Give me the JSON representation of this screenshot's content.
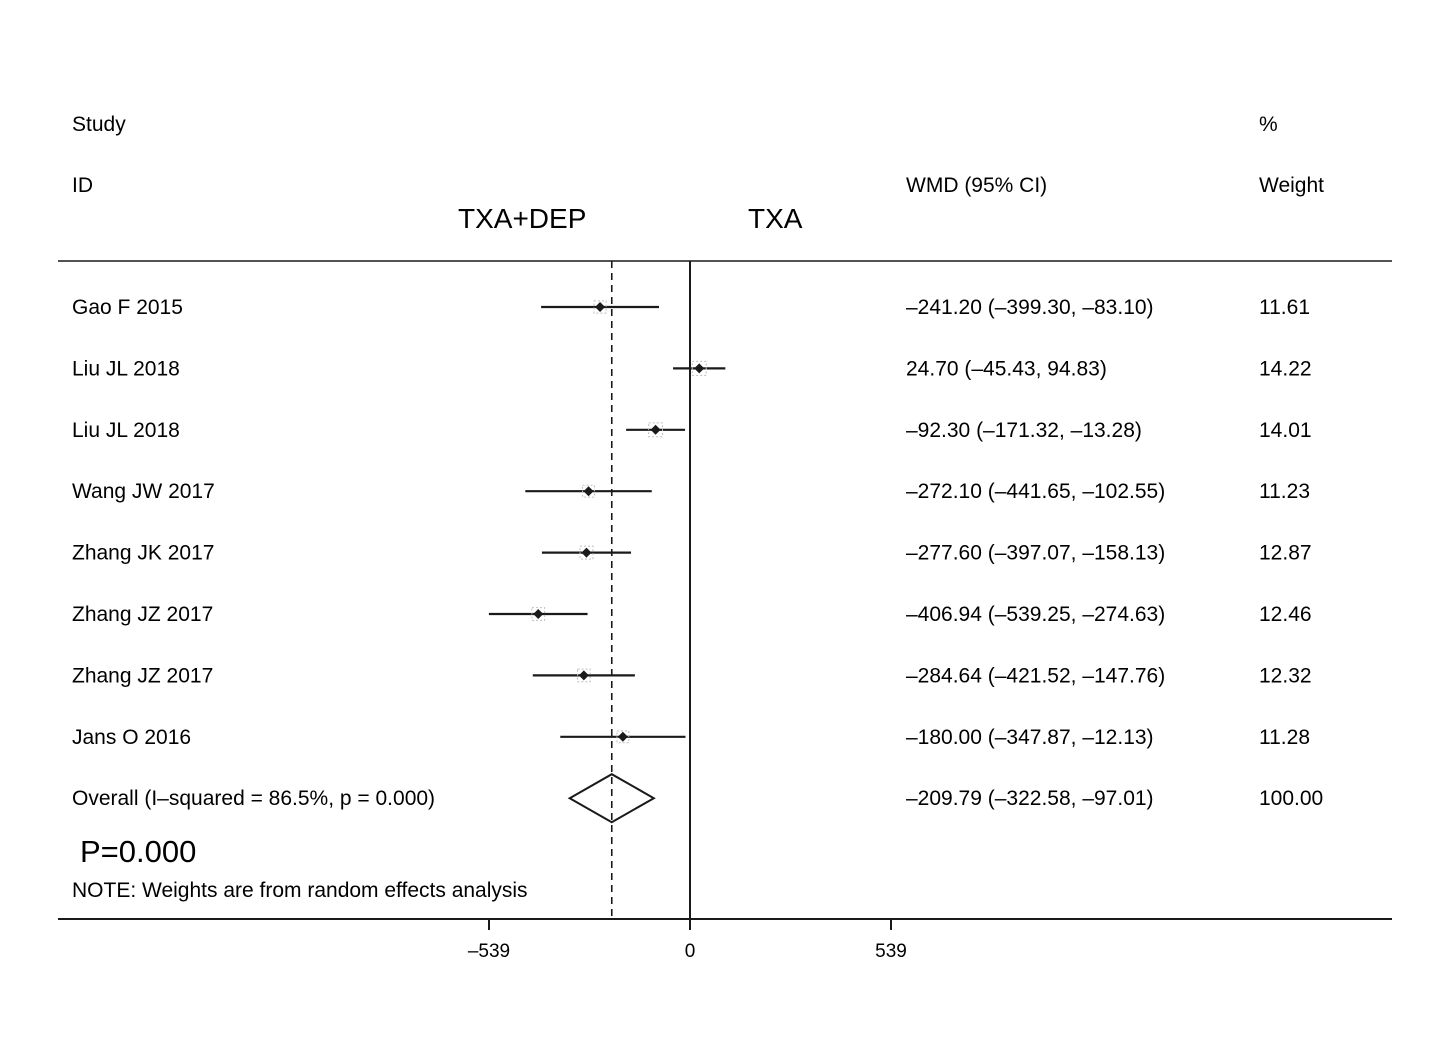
{
  "headers": {
    "study": "Study",
    "id": "ID",
    "effect": "WMD (95% CI)",
    "pct": "%",
    "weight": "Weight"
  },
  "group_labels": {
    "left": "TXA+DEP",
    "right": "TXA"
  },
  "p_value": "P=0.000",
  "note": "NOTE: Weights are from random effects analysis",
  "colors": {
    "ink": "#1a1a1a",
    "background": "#ffffff"
  },
  "chart_data": {
    "type": "forest",
    "effect_measure": "WMD (95% CI)",
    "null_line": 0,
    "overall_line": -209.79,
    "ticks": [
      {
        "value": -539,
        "label": "–539"
      },
      {
        "value": 0,
        "label": "0"
      },
      {
        "value": 539,
        "label": "539"
      }
    ],
    "studies": [
      {
        "id": "Gao F 2015",
        "est": -241.2,
        "lo": -399.3,
        "hi": -83.1,
        "ci_text": "–241.20 (–399.30, –83.10)",
        "weight": 11.61,
        "weight_text": "11.61"
      },
      {
        "id": "Liu JL 2018",
        "est": 24.7,
        "lo": -45.43,
        "hi": 94.83,
        "ci_text": "24.70 (–45.43, 94.83)",
        "weight": 14.22,
        "weight_text": "14.22"
      },
      {
        "id": "Liu JL 2018",
        "est": -92.3,
        "lo": -171.32,
        "hi": -13.28,
        "ci_text": "–92.30 (–171.32, –13.28)",
        "weight": 14.01,
        "weight_text": "14.01"
      },
      {
        "id": "Wang JW 2017",
        "est": -272.1,
        "lo": -441.65,
        "hi": -102.55,
        "ci_text": "–272.10 (–441.65, –102.55)",
        "weight": 11.23,
        "weight_text": "11.23"
      },
      {
        "id": "Zhang JK 2017",
        "est": -277.6,
        "lo": -397.07,
        "hi": -158.13,
        "ci_text": "–277.60 (–397.07, –158.13)",
        "weight": 12.87,
        "weight_text": "12.87"
      },
      {
        "id": "Zhang JZ 2017",
        "est": -406.94,
        "lo": -539.25,
        "hi": -274.63,
        "ci_text": "–406.94 (–539.25, –274.63)",
        "weight": 12.46,
        "weight_text": "12.46"
      },
      {
        "id": "Zhang JZ 2017",
        "est": -284.64,
        "lo": -421.52,
        "hi": -147.76,
        "ci_text": "–284.64 (–421.52, –147.76)",
        "weight": 12.32,
        "weight_text": "12.32"
      },
      {
        "id": "Jans O 2016",
        "est": -180.0,
        "lo": -347.87,
        "hi": -12.13,
        "ci_text": "–180.00 (–347.87, –12.13)",
        "weight": 11.28,
        "weight_text": "11.28"
      }
    ],
    "overall": {
      "label": "Overall  (I–squared = 86.5%, p = 0.000)",
      "est": -209.79,
      "lo": -322.58,
      "hi": -97.01,
      "ci_text": "–209.79 (–322.58, –97.01)",
      "weight_text": "100.00"
    }
  }
}
